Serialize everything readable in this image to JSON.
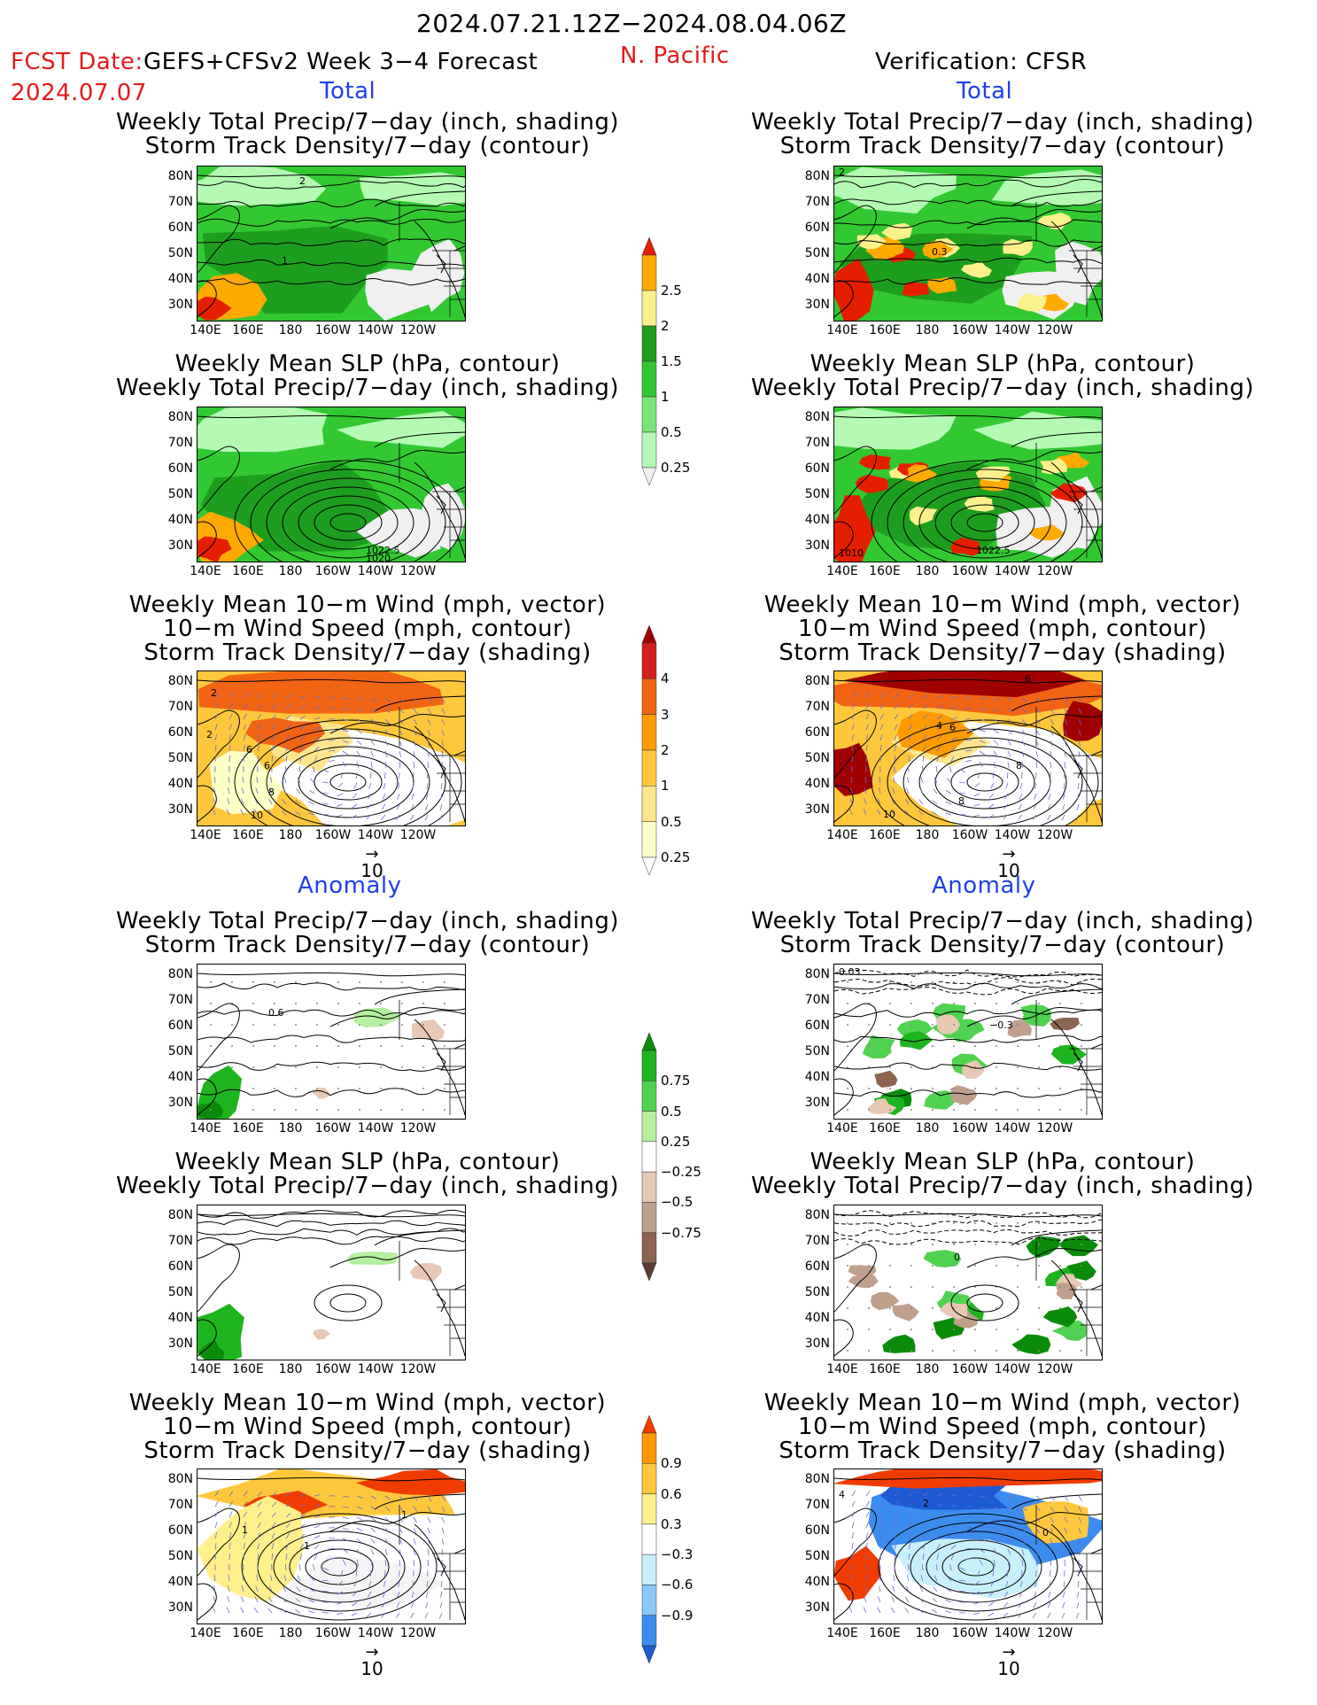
{
  "header": {
    "period": "2024.07.21.12Z−2024.08.04.06Z",
    "fcst_date_label": "FCST Date:",
    "fcst_date": "2024.07.07",
    "model": "GEFS+CFSv2 Week 3−4 Forecast",
    "region": "N. Pacific",
    "verification": "Verification: CFSR"
  },
  "sections": {
    "total": "Total",
    "anomaly": "Anomaly"
  },
  "titles": {
    "precip_storm": [
      "Weekly Total Precip/7−day (inch, shading)",
      "Storm Track Density/7−day (contour)"
    ],
    "slp_precip": [
      "Weekly Mean SLP (hPa, contour)",
      "Weekly Total Precip/7−day (inch, shading)"
    ],
    "wind_storm": [
      "Weekly Mean 10−m Wind (mph, vector)",
      "10−m Wind Speed (mph, contour)",
      "Storm Track Density/7−day (shading)"
    ]
  },
  "axes": {
    "lat_labels": [
      "80N",
      "70N",
      "60N",
      "50N",
      "40N",
      "30N"
    ],
    "lon_labels": [
      "140E",
      "160E",
      "180",
      "160W",
      "140W",
      "120W"
    ]
  },
  "vector_ref": "10",
  "panel_labels": {
    "l1": [
      "2",
      "1"
    ],
    "r1": [
      "2",
      "0.3"
    ],
    "l2": [
      "1022.5",
      "1020"
    ],
    "r2": [
      "1022.5",
      "1010"
    ],
    "l3": [
      "2",
      "2",
      "6",
      "6",
      "8",
      "10"
    ],
    "r3": [
      "6",
      "4",
      "6",
      "8",
      "8",
      "10"
    ],
    "l4": [
      "0.6"
    ],
    "r4": [
      "0.03",
      "−0.3"
    ],
    "r5": [
      "0"
    ],
    "l6": [
      "1",
      "1",
      "1"
    ],
    "r6": [
      "4",
      "2",
      "0"
    ]
  },
  "colorbars": {
    "precip_total": {
      "labels": [
        "2.5",
        "2",
        "1.5",
        "1",
        "0.5",
        "0.25"
      ],
      "colors": [
        "#f0f0f0",
        "#b4fab4",
        "#78e678",
        "#32c832",
        "#1e9e1e",
        "#faf08c",
        "#ffaa00",
        "#e61e00"
      ]
    },
    "storm_total": {
      "labels": [
        "4",
        "3",
        "2",
        "1",
        "0.5",
        "0.25"
      ],
      "colors": [
        "#ffffff",
        "#ffffc8",
        "#ffe68c",
        "#ffc83c",
        "#ff9b00",
        "#f06414",
        "#d21e1e",
        "#a00000"
      ]
    },
    "precip_anom": {
      "labels": [
        "0.75",
        "0.5",
        "0.25",
        "−0.25",
        "−0.5",
        "−0.75"
      ],
      "colors": [
        "#5a3c32",
        "#8c6450",
        "#beA08c",
        "#e6c8b4",
        "#ffffff",
        "#b4f0a0",
        "#50d250",
        "#1eb41e",
        "#0a8c0a"
      ]
    },
    "storm_anom": {
      "labels": [
        "0.9",
        "0.6",
        "0.3",
        "−0.3",
        "−0.6",
        "−0.9"
      ],
      "colors": [
        "#1e5ad2",
        "#3c8cf0",
        "#8cc8fa",
        "#c8f0fa",
        "#ffffff",
        "#fff08c",
        "#ffc83c",
        "#ff9600",
        "#f03c00"
      ]
    }
  }
}
